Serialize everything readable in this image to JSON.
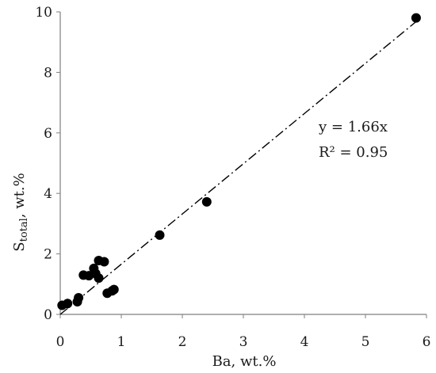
{
  "chart_data": {
    "type": "scatter",
    "xlabel": "Ba, wt.%",
    "ylabel": {
      "main": "S",
      "sub": "total",
      "rest": ", wt.%"
    },
    "xlim": [
      0,
      6
    ],
    "ylim": [
      0,
      10
    ],
    "xticks": [
      0,
      1,
      2,
      3,
      4,
      5,
      6
    ],
    "yticks": [
      0,
      2,
      4,
      6,
      8,
      10
    ],
    "grid": false,
    "points": [
      {
        "x": 0.03,
        "y": 0.3
      },
      {
        "x": 0.12,
        "y": 0.36
      },
      {
        "x": 0.28,
        "y": 0.42
      },
      {
        "x": 0.3,
        "y": 0.55
      },
      {
        "x": 0.38,
        "y": 1.3
      },
      {
        "x": 0.47,
        "y": 1.28
      },
      {
        "x": 0.55,
        "y": 1.52
      },
      {
        "x": 0.58,
        "y": 1.35
      },
      {
        "x": 0.63,
        "y": 1.2
      },
      {
        "x": 0.63,
        "y": 1.78
      },
      {
        "x": 0.72,
        "y": 1.74
      },
      {
        "x": 0.77,
        "y": 0.7
      },
      {
        "x": 0.85,
        "y": 0.78
      },
      {
        "x": 0.88,
        "y": 0.82
      },
      {
        "x": 1.63,
        "y": 2.62
      },
      {
        "x": 2.4,
        "y": 3.72
      },
      {
        "x": 5.83,
        "y": 9.8
      }
    ],
    "trendline": {
      "slope": 1.66,
      "x_range": [
        0,
        5.9
      ],
      "style": "dash-dot"
    },
    "annotations": {
      "equation": "y = 1.66x",
      "r2": "R² = 0.95"
    },
    "marker_color": "#000000"
  }
}
